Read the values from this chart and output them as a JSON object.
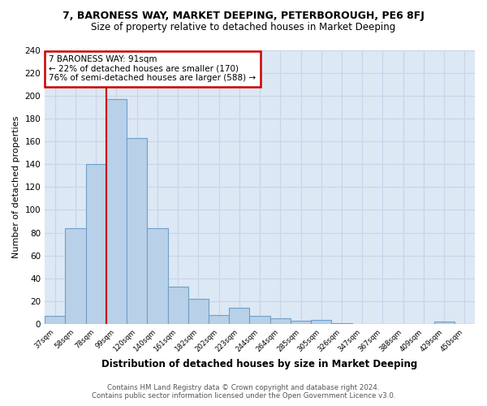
{
  "title": "7, BARONESS WAY, MARKET DEEPING, PETERBOROUGH, PE6 8FJ",
  "subtitle": "Size of property relative to detached houses in Market Deeping",
  "xlabel": "Distribution of detached houses by size in Market Deeping",
  "ylabel": "Number of detached properties",
  "categories": [
    "37sqm",
    "58sqm",
    "78sqm",
    "99sqm",
    "120sqm",
    "140sqm",
    "161sqm",
    "182sqm",
    "202sqm",
    "223sqm",
    "244sqm",
    "264sqm",
    "285sqm",
    "305sqm",
    "326sqm",
    "347sqm",
    "367sqm",
    "388sqm",
    "409sqm",
    "429sqm",
    "450sqm"
  ],
  "values": [
    7,
    84,
    140,
    197,
    163,
    84,
    33,
    22,
    8,
    14,
    7,
    5,
    3,
    4,
    1,
    0,
    0,
    0,
    0,
    2,
    0
  ],
  "bar_color": "#b8d0e8",
  "bar_edge_color": "#6ea0c8",
  "red_line_x": 3.0,
  "annotation_line1": "7 BARONESS WAY: 91sqm",
  "annotation_line2": "← 22% of detached houses are smaller (170)",
  "annotation_line3": "76% of semi-detached houses are larger (588) →",
  "annotation_box_color": "#ffffff",
  "annotation_box_edge": "#cc0000",
  "grid_color": "#c8d4e8",
  "background_color": "#dce8f4",
  "fig_background": "#ffffff",
  "ylim": [
    0,
    240
  ],
  "yticks": [
    0,
    20,
    40,
    60,
    80,
    100,
    120,
    140,
    160,
    180,
    200,
    220,
    240
  ],
  "footer": "Contains HM Land Registry data © Crown copyright and database right 2024.\nContains public sector information licensed under the Open Government Licence v3.0."
}
